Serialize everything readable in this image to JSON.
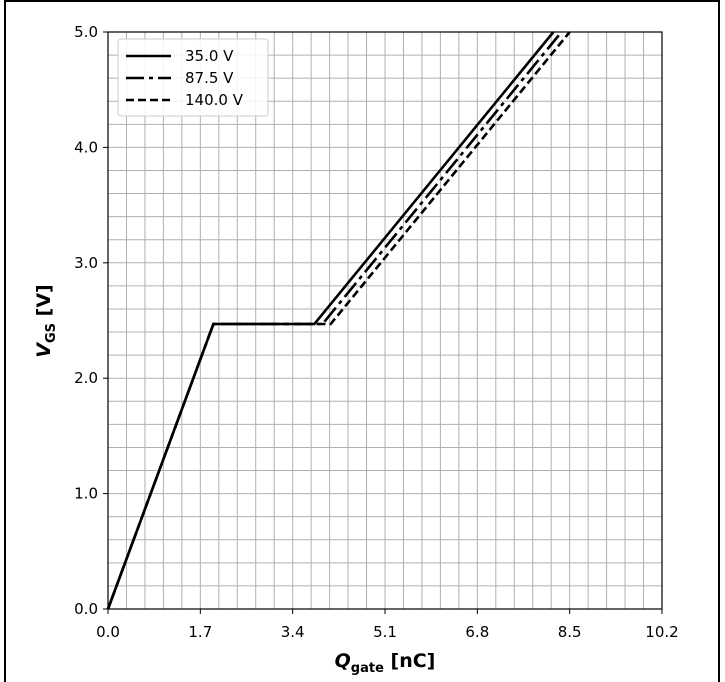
{
  "chart_data": {
    "type": "line",
    "title": "",
    "xlabel": {
      "main": "Q",
      "sub": "gate",
      "unit": " [nC]"
    },
    "ylabel": {
      "main": "V",
      "sub": "GS",
      "unit": " [V]"
    },
    "xlim": [
      0,
      10.2
    ],
    "ylim": [
      0,
      5.0
    ],
    "xticks": [
      0.0,
      1.7,
      3.4,
      5.1,
      6.8,
      8.5,
      10.2
    ],
    "xtick_labels": [
      "0.0",
      "1.7",
      "3.4",
      "5.1",
      "6.8",
      "8.5",
      "10.2"
    ],
    "yticks": [
      0.0,
      1.0,
      2.0,
      3.0,
      4.0,
      5.0
    ],
    "ytick_labels": [
      "0.0",
      "1.0",
      "2.0",
      "3.0",
      "4.0",
      "5.0"
    ],
    "minor_grid_x_step": 0.34,
    "minor_grid_y_step": 0.2,
    "grid": true,
    "legend_position": "top-left",
    "series": [
      {
        "name": "35.0 V",
        "style": "solid",
        "points": [
          [
            0,
            0
          ],
          [
            1.94,
            2.47
          ],
          [
            3.8,
            2.47
          ],
          [
            8.2,
            5.0
          ]
        ]
      },
      {
        "name": "87.5 V",
        "style": "dashdot",
        "points": [
          [
            0,
            0
          ],
          [
            1.94,
            2.47
          ],
          [
            3.95,
            2.47
          ],
          [
            8.35,
            5.0
          ]
        ]
      },
      {
        "name": "140.0 V",
        "style": "dashed",
        "points": [
          [
            0,
            0
          ],
          [
            1.94,
            2.47
          ],
          [
            4.1,
            2.47
          ],
          [
            8.5,
            5.0
          ]
        ]
      }
    ]
  },
  "colors": {
    "line": "#000000",
    "grid": "#b0b0b0",
    "frame": "#000000"
  }
}
